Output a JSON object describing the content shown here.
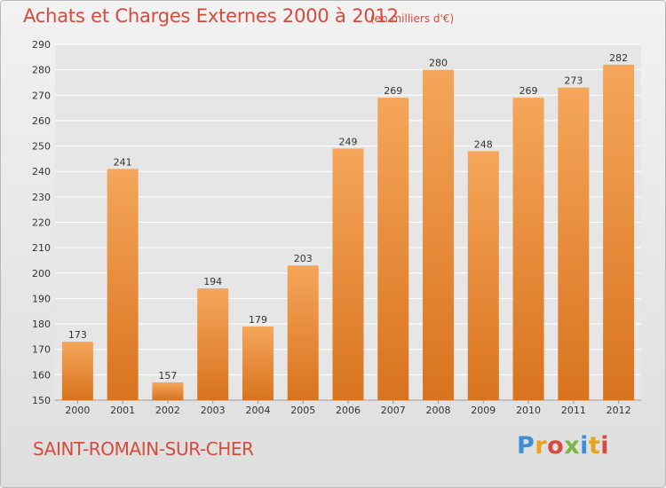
{
  "title": "Achats et Charges Externes 2000 à 2012",
  "subtitle": "(en milliers d'€)",
  "footer_name": "SAINT-ROMAIN-SUR-CHER",
  "logo": {
    "letters": [
      "P",
      "r",
      "o",
      "x",
      "i",
      "t",
      "i"
    ]
  },
  "colors": {
    "bar_top": "#f5a65a",
    "bar_bottom": "#d8731e",
    "title": "#d84a3c",
    "grid": "#ffffff"
  },
  "chart_data": {
    "type": "bar",
    "categories": [
      "2000",
      "2001",
      "2002",
      "2003",
      "2004",
      "2005",
      "2006",
      "2007",
      "2008",
      "2009",
      "2010",
      "2011",
      "2012"
    ],
    "values": [
      173,
      241,
      157,
      194,
      179,
      203,
      249,
      269,
      280,
      248,
      269,
      273,
      282
    ],
    "ylim": [
      150,
      290
    ],
    "yticks": [
      150,
      160,
      170,
      180,
      190,
      200,
      210,
      220,
      230,
      240,
      250,
      260,
      270,
      280,
      290
    ],
    "grid": true,
    "xlabel": "",
    "ylabel": ""
  }
}
